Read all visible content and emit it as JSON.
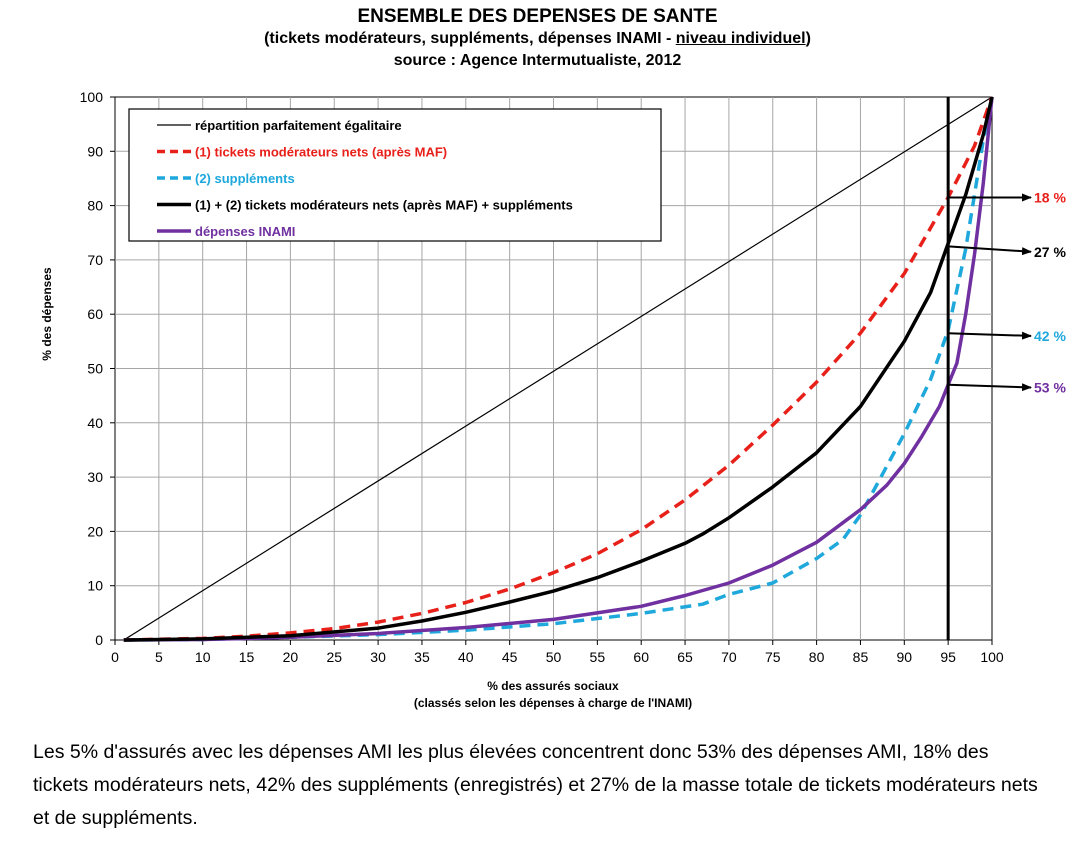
{
  "title": {
    "line1": "ENSEMBLE DES DEPENSES DE SANTE",
    "line2_a": "(tickets modérateurs, suppléments, dépenses INAMI - ",
    "line2_b": "niveau individuel",
    "line2_c": ")",
    "line3": "source : Agence Intermutualiste, 2012"
  },
  "caption": "Les 5% d'assurés avec les dépenses AMI les plus élevées concentrent donc 53% des dépenses AMI, 18% des tickets modérateurs nets, 42% des suppléments (enregistrés) et 27% de la masse totale de tickets modérateurs nets et de suppléments.",
  "chart_data": {
    "type": "line",
    "ylabel": "% des dépenses",
    "xlabel_line1": "% des assurés sociaux",
    "xlabel_line2": "(classés selon les dépenses à charge de l'INAMI)",
    "xlim": [
      0,
      100
    ],
    "ylim": [
      0,
      100
    ],
    "x_ticks": [
      "0",
      "5",
      "10",
      "15",
      "20",
      "25",
      "30",
      "35",
      "40",
      "45",
      "50",
      "55",
      "60",
      "65",
      "70",
      "75",
      "80",
      "85",
      "90",
      "95",
      "100"
    ],
    "y_ticks": [
      "0",
      "10",
      "20",
      "30",
      "40",
      "50",
      "60",
      "70",
      "80",
      "90",
      "100"
    ],
    "grid": true,
    "legend_position": "top-left",
    "vertical_marker_x": 95,
    "series": [
      {
        "name": "répartition parfaitement égalitaire",
        "color": "#000000",
        "style": "solid-thin",
        "x": [
          1,
          100
        ],
        "y": [
          0,
          100
        ]
      },
      {
        "name": "(1) tickets modérateurs nets (après MAF)",
        "color": "#e8201a",
        "style": "dashed",
        "x": [
          1,
          10,
          15,
          20,
          25,
          30,
          35,
          40,
          45,
          50,
          55,
          60,
          65,
          70,
          75,
          80,
          85,
          90,
          95,
          98,
          100
        ],
        "y": [
          0,
          0.3,
          0.7,
          1.3,
          2.1,
          3.3,
          4.9,
          6.9,
          9.4,
          12.4,
          15.9,
          20.3,
          25.8,
          32.2,
          39.6,
          47.5,
          56.5,
          67.5,
          81.5,
          91,
          100
        ]
      },
      {
        "name": "(2) suppléments",
        "color": "#1fa8dc",
        "style": "dashed",
        "x": [
          1,
          10,
          20,
          30,
          40,
          50,
          60,
          67,
          70,
          75,
          80,
          83,
          85,
          87,
          90,
          93,
          95,
          97,
          98,
          99,
          100
        ],
        "y": [
          0,
          0.1,
          0.5,
          1,
          1.8,
          3,
          4.9,
          6.6,
          8.4,
          10.5,
          15,
          18.5,
          23,
          29,
          38,
          48,
          57,
          72,
          82,
          92,
          100
        ]
      },
      {
        "name": "(1) + (2) tickets modérateurs nets (après MAF) + suppléments",
        "color": "#000000",
        "style": "solid-thick",
        "x": [
          1,
          10,
          20,
          30,
          35,
          40,
          45,
          50,
          55,
          60,
          65,
          67,
          70,
          75,
          80,
          85,
          90,
          93,
          95,
          97,
          99,
          100
        ],
        "y": [
          0,
          0.2,
          0.8,
          2.2,
          3.5,
          5.1,
          7,
          9,
          11.5,
          14.5,
          17.8,
          19.5,
          22.5,
          28.2,
          34.5,
          43,
          55,
          64,
          73,
          82,
          93,
          100
        ]
      },
      {
        "name": "dépenses INAMI",
        "color": "#7030a0",
        "style": "solid-thick",
        "x": [
          1,
          10,
          20,
          30,
          40,
          50,
          60,
          65,
          70,
          75,
          80,
          85,
          88,
          90,
          92,
          94,
          95,
          96,
          97,
          98,
          99,
          100
        ],
        "y": [
          0,
          0.1,
          0.5,
          1.2,
          2.3,
          3.8,
          6.2,
          8.2,
          10.5,
          13.8,
          18,
          24,
          28.5,
          32.5,
          37.5,
          43,
          47,
          51,
          60,
          71,
          84,
          100
        ]
      }
    ],
    "annotations": [
      {
        "label": "18 %",
        "color": "#e8201a",
        "from_y": 81.5,
        "to_y": 81.5
      },
      {
        "label": "27 %",
        "color": "#000000",
        "from_y": 72.5,
        "to_y": 71.5
      },
      {
        "label": "42 %",
        "color": "#1fa8dc",
        "from_y": 56.5,
        "to_y": 56
      },
      {
        "label": "53 %",
        "color": "#7030a0",
        "from_y": 47,
        "to_y": 46.5
      }
    ]
  }
}
